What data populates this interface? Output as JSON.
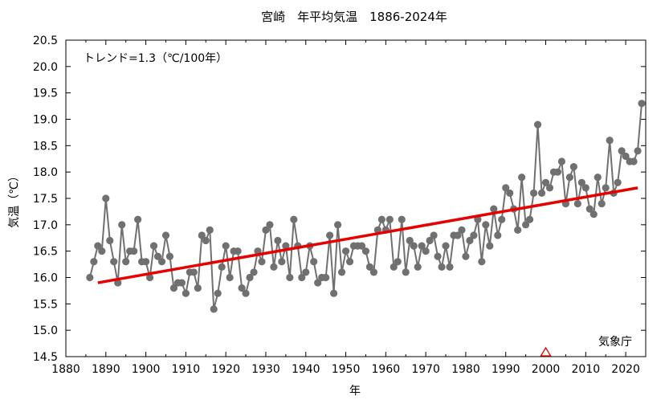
{
  "chart_data": {
    "type": "line",
    "title": "宮崎　年平均気温　1886-2024年",
    "xlabel": "年",
    "ylabel": "気温（℃）",
    "xlim": [
      1880,
      2025
    ],
    "ylim": [
      14.5,
      20.5
    ],
    "xticks": [
      1880,
      1890,
      1900,
      1910,
      1920,
      1930,
      1940,
      1950,
      1960,
      1970,
      1980,
      1990,
      2000,
      2010,
      2020
    ],
    "yticks": [
      "14.5",
      "15.0",
      "15.5",
      "16.0",
      "16.5",
      "17.0",
      "17.5",
      "18.0",
      "18.5",
      "19.0",
      "19.5",
      "20.0",
      "20.5"
    ],
    "grid": false,
    "trend_label": "トレンド=1.3（℃/100年）",
    "source_label": "気象庁",
    "colors": {
      "series": "#707070",
      "trend": "#e60000",
      "marker": "#e60000",
      "axis": "#000000"
    },
    "series": [
      {
        "x": [
          1886,
          1887,
          1888,
          1889,
          1890,
          1891,
          1892,
          1893,
          1894,
          1895,
          1896,
          1897,
          1898,
          1899,
          1900,
          1901,
          1902,
          1903,
          1904,
          1905,
          1906,
          1907,
          1908,
          1909,
          1910,
          1911,
          1912,
          1913,
          1914,
          1915,
          1916,
          1917,
          1918,
          1919,
          1920,
          1921,
          1922,
          1923,
          1924,
          1925,
          1926,
          1927,
          1928,
          1929,
          1930,
          1931,
          1932,
          1933,
          1934,
          1935,
          1936,
          1937,
          1938,
          1939,
          1940,
          1941,
          1942,
          1943,
          1944,
          1945,
          1946,
          1947,
          1948,
          1949,
          1950,
          1951,
          1952,
          1953,
          1954,
          1955,
          1956,
          1957,
          1958,
          1959,
          1960,
          1961,
          1962,
          1963,
          1964,
          1965,
          1966,
          1967,
          1968,
          1969,
          1970,
          1971,
          1972,
          1973,
          1974,
          1975,
          1976,
          1977,
          1978,
          1979,
          1980,
          1981,
          1982,
          1983,
          1984,
          1985,
          1986,
          1987,
          1988,
          1989,
          1990,
          1991,
          1992,
          1993,
          1994,
          1995,
          1996,
          1997,
          1998,
          1999,
          2000,
          2001,
          2002,
          2003,
          2004,
          2005,
          2006,
          2007,
          2008,
          2009,
          2010,
          2011,
          2012,
          2013,
          2014,
          2015,
          2016,
          2017,
          2018,
          2019,
          2020,
          2021,
          2022,
          2023,
          2024
        ],
        "values": [
          16.0,
          16.3,
          16.6,
          16.5,
          17.5,
          16.7,
          16.3,
          15.9,
          17.0,
          16.3,
          16.5,
          16.5,
          17.1,
          16.3,
          16.3,
          16.0,
          16.6,
          16.4,
          16.3,
          16.8,
          16.4,
          15.8,
          15.9,
          15.9,
          15.7,
          16.1,
          16.1,
          15.8,
          16.8,
          16.7,
          16.9,
          15.4,
          15.7,
          16.2,
          16.6,
          16.0,
          16.5,
          16.5,
          15.8,
          15.7,
          16.0,
          16.1,
          16.5,
          16.3,
          16.9,
          17.0,
          16.2,
          16.7,
          16.3,
          16.6,
          16.0,
          17.1,
          16.6,
          16.0,
          16.1,
          16.6,
          16.3,
          15.9,
          16.0,
          16.0,
          16.8,
          15.7,
          17.0,
          16.1,
          16.5,
          16.3,
          16.6,
          16.6,
          16.6,
          16.5,
          16.2,
          16.1,
          16.9,
          17.1,
          16.9,
          17.1,
          16.2,
          16.3,
          17.1,
          16.1,
          16.7,
          16.6,
          16.2,
          16.6,
          16.5,
          16.7,
          16.8,
          16.4,
          16.2,
          16.6,
          16.2,
          16.8,
          16.8,
          16.9,
          16.4,
          16.7,
          16.8,
          17.1,
          16.3,
          17.0,
          16.6,
          17.3,
          16.8,
          17.1,
          17.7,
          17.6,
          17.3,
          16.9,
          17.9,
          17.0,
          17.1,
          17.6,
          18.9,
          17.6,
          17.8,
          17.7,
          18.0,
          18.0,
          18.2,
          17.4,
          17.9,
          18.1,
          17.4,
          17.8,
          17.7,
          17.3,
          17.2,
          17.9,
          17.4,
          17.7,
          18.6,
          17.6,
          17.8,
          18.4,
          18.3,
          18.2,
          18.2,
          18.4,
          19.3
        ]
      }
    ],
    "trend_line": {
      "x": [
        1888,
        2023
      ],
      "y": [
        15.9,
        17.7
      ]
    },
    "marker": {
      "x": 2000,
      "shape": "triangle"
    }
  }
}
